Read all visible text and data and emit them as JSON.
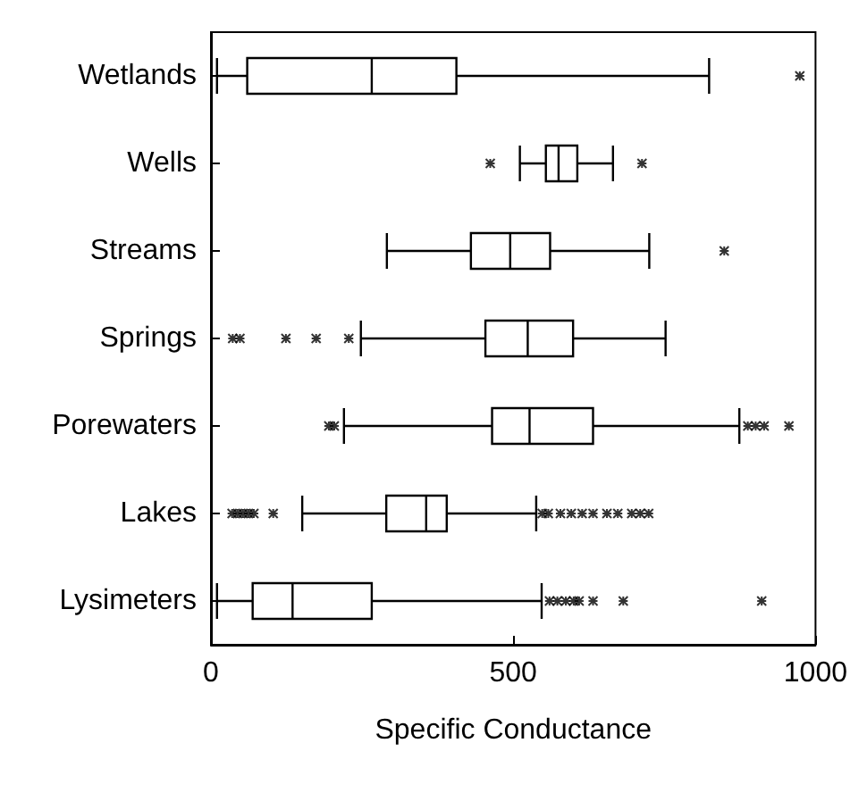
{
  "chart_data": {
    "type": "box",
    "orientation": "horizontal",
    "xlabel": "Specific Conductance",
    "categories": [
      "Wetlands",
      "Wells",
      "Streams",
      "Springs",
      "Porewaters",
      "Lakes",
      "Lysimeters"
    ],
    "boxes": [
      {
        "low": 10,
        "q1": 60,
        "median": 266,
        "q3": 406,
        "high": 824,
        "outliers": [
          974
        ]
      },
      {
        "low": 511,
        "q1": 554,
        "median": 575,
        "q3": 606,
        "high": 665,
        "outliers": [
          462,
          713
        ]
      },
      {
        "low": 291,
        "q1": 430,
        "median": 495,
        "q3": 561,
        "high": 725,
        "outliers": [
          849
        ]
      },
      {
        "low": 248,
        "q1": 454,
        "median": 524,
        "q3": 599,
        "high": 752,
        "outliers": [
          36,
          48,
          124,
          174,
          228
        ]
      },
      {
        "low": 220,
        "q1": 465,
        "median": 527,
        "q3": 632,
        "high": 874,
        "outliers": [
          195,
          204,
          888,
          901,
          915,
          956
        ]
      },
      {
        "low": 151,
        "q1": 290,
        "median": 356,
        "q3": 390,
        "high": 538,
        "outliers": [
          35,
          44,
          53,
          62,
          71,
          103,
          548,
          558,
          578,
          596,
          614,
          632,
          655,
          673,
          696,
          710,
          724
        ]
      },
      {
        "low": 10,
        "q1": 69,
        "median": 135,
        "q3": 266,
        "high": 547,
        "outliers": [
          560,
          573,
          587,
          600,
          609,
          632,
          682,
          911
        ]
      }
    ],
    "color": "#000000",
    "xlim": [
      0,
      1000
    ],
    "xticks": [
      0,
      500,
      1000
    ],
    "marker": "cross",
    "grid": false
  }
}
